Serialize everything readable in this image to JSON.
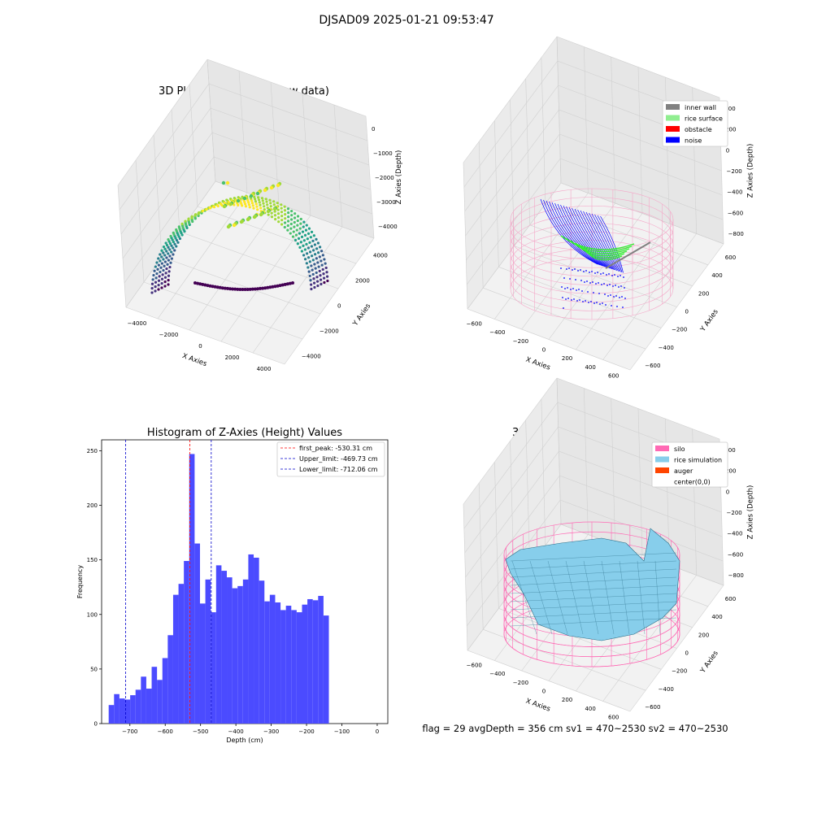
{
  "suptitle": "DJSAD09 2025-01-21 09:53:47",
  "footer": "flag = 29  avgDepth = 356 cm  sv1 = 470~2530  sv2 = 470~2530",
  "chart_data": [
    {
      "type": "scatter",
      "title": "3D Plot of Silo Interior(row data)",
      "xlabel": "X Axies",
      "ylabel": "Y Axies",
      "zlabel": "Z Axies (Depth)",
      "x_ticks": [
        "−4000",
        "−2000",
        "0",
        "2000",
        "4000"
      ],
      "y_ticks": [
        "−4000",
        "−2000",
        "0",
        "2000",
        "4000"
      ],
      "z_ticks": [
        "0",
        "−1000",
        "−2000",
        "−3000",
        "−4000"
      ],
      "xlim": [
        -4500,
        4500
      ],
      "ylim": [
        -4500,
        4500
      ],
      "zlim": [
        -4600,
        200
      ],
      "colormap": "viridis",
      "grid": true
    },
    {
      "type": "scatter",
      "title": "3D classify of Silo Interior",
      "xlabel": "X Axies",
      "ylabel": "Y Axies",
      "zlabel": "Z Axies (Depth)",
      "x_ticks": [
        "−600",
        "−400",
        "−200",
        "0",
        "200",
        "400",
        "600"
      ],
      "y_ticks": [
        "−600",
        "−400",
        "−200",
        "0",
        "200",
        "400",
        "600"
      ],
      "z_ticks": [
        "400",
        "200",
        "0",
        "−200",
        "−400",
        "−600",
        "−800"
      ],
      "legend": [
        {
          "label": "inner wall",
          "color": "#808080"
        },
        {
          "label": "rice surface",
          "color": "#90ee90"
        },
        {
          "label": "obstacle",
          "color": "#ff0000"
        },
        {
          "label": "noise",
          "color": "#0000ff"
        }
      ],
      "legend_position": "top-right",
      "wireframe_color": "#f4a7c8",
      "grid": true
    },
    {
      "type": "bar",
      "title": "Histogram of Z-Axies (Height) Values",
      "xlabel": "Depth (cm)",
      "ylabel": "Frequency",
      "xlim": [
        -780,
        30
      ],
      "ylim": [
        0,
        260
      ],
      "x_ticks": [
        -700,
        -600,
        -500,
        -400,
        -300,
        -200,
        -100,
        0
      ],
      "x_tick_labels": [
        "−700",
        "−600",
        "−500",
        "−400",
        "−300",
        "−200",
        "−100",
        "0"
      ],
      "y_ticks": [
        0,
        50,
        100,
        150,
        200,
        250
      ],
      "bin_start": -760,
      "bin_width": 15.2,
      "values": [
        17,
        27,
        23,
        22,
        26,
        31,
        43,
        32,
        52,
        40,
        60,
        81,
        118,
        128,
        149,
        247,
        165,
        110,
        132,
        102,
        145,
        140,
        134,
        124,
        126,
        132,
        155,
        152,
        131,
        112,
        118,
        111,
        104,
        108,
        104,
        102,
        109,
        114,
        113,
        117,
        99
      ],
      "bar_color": "#4b4bff",
      "vlines": [
        {
          "x": -530.31,
          "label": "first_peak: -530.31 cm",
          "color": "#ff0000"
        },
        {
          "x": -469.73,
          "label": "Upper_limit: -469.73 cm",
          "color": "#0000cc"
        },
        {
          "x": -712.06,
          "label": "Lower_limit: -712.06 cm",
          "color": "#0000cc"
        }
      ],
      "legend_position": "top-right"
    },
    {
      "type": "area",
      "title": "3D simulation of Silo Interior",
      "xlabel": "X Axies",
      "ylabel": "Y Axies",
      "zlabel": "Z Axies (Depth)",
      "x_ticks": [
        "−600",
        "−400",
        "−200",
        "0",
        "200",
        "400",
        "600"
      ],
      "y_ticks": [
        "−600",
        "−400",
        "−200",
        "0",
        "200",
        "400",
        "600"
      ],
      "z_ticks": [
        "400",
        "200",
        "0",
        "−200",
        "−400",
        "−600",
        "−800"
      ],
      "legend": [
        {
          "label": "silo",
          "color": "#ff69b4"
        },
        {
          "label": "rice simulation",
          "color": "#87ceeb"
        },
        {
          "label": "auger",
          "color": "#ff4500"
        },
        {
          "label": "center(0,0)",
          "color": ""
        }
      ],
      "legend_position": "top-right",
      "grid": true
    }
  ]
}
